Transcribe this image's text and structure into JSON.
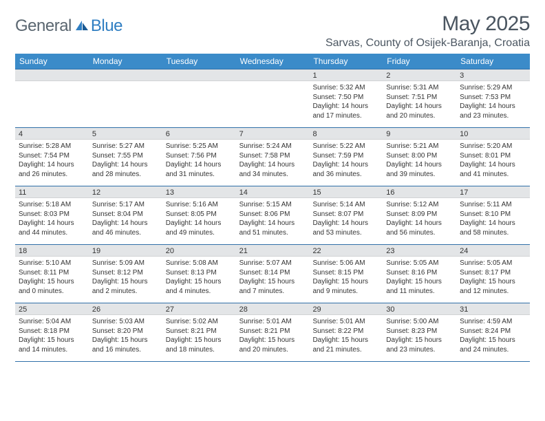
{
  "logo": {
    "general": "General",
    "blue": "Blue"
  },
  "title": "May 2025",
  "location": "Sarvas, County of Osijek-Baranja, Croatia",
  "colors": {
    "header_bg": "#3b8bc9",
    "week_border": "#2f6fa8",
    "daynum_bg": "#e3e5e7",
    "text": "#333333",
    "logo_gray": "#5a6670",
    "logo_blue": "#2f7ec2"
  },
  "day_headers": [
    "Sunday",
    "Monday",
    "Tuesday",
    "Wednesday",
    "Thursday",
    "Friday",
    "Saturday"
  ],
  "weeks": [
    [
      {
        "n": "",
        "sr": "",
        "ss": "",
        "dl": ""
      },
      {
        "n": "",
        "sr": "",
        "ss": "",
        "dl": ""
      },
      {
        "n": "",
        "sr": "",
        "ss": "",
        "dl": ""
      },
      {
        "n": "",
        "sr": "",
        "ss": "",
        "dl": ""
      },
      {
        "n": "1",
        "sr": "Sunrise: 5:32 AM",
        "ss": "Sunset: 7:50 PM",
        "dl": "Daylight: 14 hours and 17 minutes."
      },
      {
        "n": "2",
        "sr": "Sunrise: 5:31 AM",
        "ss": "Sunset: 7:51 PM",
        "dl": "Daylight: 14 hours and 20 minutes."
      },
      {
        "n": "3",
        "sr": "Sunrise: 5:29 AM",
        "ss": "Sunset: 7:53 PM",
        "dl": "Daylight: 14 hours and 23 minutes."
      }
    ],
    [
      {
        "n": "4",
        "sr": "Sunrise: 5:28 AM",
        "ss": "Sunset: 7:54 PM",
        "dl": "Daylight: 14 hours and 26 minutes."
      },
      {
        "n": "5",
        "sr": "Sunrise: 5:27 AM",
        "ss": "Sunset: 7:55 PM",
        "dl": "Daylight: 14 hours and 28 minutes."
      },
      {
        "n": "6",
        "sr": "Sunrise: 5:25 AM",
        "ss": "Sunset: 7:56 PM",
        "dl": "Daylight: 14 hours and 31 minutes."
      },
      {
        "n": "7",
        "sr": "Sunrise: 5:24 AM",
        "ss": "Sunset: 7:58 PM",
        "dl": "Daylight: 14 hours and 34 minutes."
      },
      {
        "n": "8",
        "sr": "Sunrise: 5:22 AM",
        "ss": "Sunset: 7:59 PM",
        "dl": "Daylight: 14 hours and 36 minutes."
      },
      {
        "n": "9",
        "sr": "Sunrise: 5:21 AM",
        "ss": "Sunset: 8:00 PM",
        "dl": "Daylight: 14 hours and 39 minutes."
      },
      {
        "n": "10",
        "sr": "Sunrise: 5:20 AM",
        "ss": "Sunset: 8:01 PM",
        "dl": "Daylight: 14 hours and 41 minutes."
      }
    ],
    [
      {
        "n": "11",
        "sr": "Sunrise: 5:18 AM",
        "ss": "Sunset: 8:03 PM",
        "dl": "Daylight: 14 hours and 44 minutes."
      },
      {
        "n": "12",
        "sr": "Sunrise: 5:17 AM",
        "ss": "Sunset: 8:04 PM",
        "dl": "Daylight: 14 hours and 46 minutes."
      },
      {
        "n": "13",
        "sr": "Sunrise: 5:16 AM",
        "ss": "Sunset: 8:05 PM",
        "dl": "Daylight: 14 hours and 49 minutes."
      },
      {
        "n": "14",
        "sr": "Sunrise: 5:15 AM",
        "ss": "Sunset: 8:06 PM",
        "dl": "Daylight: 14 hours and 51 minutes."
      },
      {
        "n": "15",
        "sr": "Sunrise: 5:14 AM",
        "ss": "Sunset: 8:07 PM",
        "dl": "Daylight: 14 hours and 53 minutes."
      },
      {
        "n": "16",
        "sr": "Sunrise: 5:12 AM",
        "ss": "Sunset: 8:09 PM",
        "dl": "Daylight: 14 hours and 56 minutes."
      },
      {
        "n": "17",
        "sr": "Sunrise: 5:11 AM",
        "ss": "Sunset: 8:10 PM",
        "dl": "Daylight: 14 hours and 58 minutes."
      }
    ],
    [
      {
        "n": "18",
        "sr": "Sunrise: 5:10 AM",
        "ss": "Sunset: 8:11 PM",
        "dl": "Daylight: 15 hours and 0 minutes."
      },
      {
        "n": "19",
        "sr": "Sunrise: 5:09 AM",
        "ss": "Sunset: 8:12 PM",
        "dl": "Daylight: 15 hours and 2 minutes."
      },
      {
        "n": "20",
        "sr": "Sunrise: 5:08 AM",
        "ss": "Sunset: 8:13 PM",
        "dl": "Daylight: 15 hours and 4 minutes."
      },
      {
        "n": "21",
        "sr": "Sunrise: 5:07 AM",
        "ss": "Sunset: 8:14 PM",
        "dl": "Daylight: 15 hours and 7 minutes."
      },
      {
        "n": "22",
        "sr": "Sunrise: 5:06 AM",
        "ss": "Sunset: 8:15 PM",
        "dl": "Daylight: 15 hours and 9 minutes."
      },
      {
        "n": "23",
        "sr": "Sunrise: 5:05 AM",
        "ss": "Sunset: 8:16 PM",
        "dl": "Daylight: 15 hours and 11 minutes."
      },
      {
        "n": "24",
        "sr": "Sunrise: 5:05 AM",
        "ss": "Sunset: 8:17 PM",
        "dl": "Daylight: 15 hours and 12 minutes."
      }
    ],
    [
      {
        "n": "25",
        "sr": "Sunrise: 5:04 AM",
        "ss": "Sunset: 8:18 PM",
        "dl": "Daylight: 15 hours and 14 minutes."
      },
      {
        "n": "26",
        "sr": "Sunrise: 5:03 AM",
        "ss": "Sunset: 8:20 PM",
        "dl": "Daylight: 15 hours and 16 minutes."
      },
      {
        "n": "27",
        "sr": "Sunrise: 5:02 AM",
        "ss": "Sunset: 8:21 PM",
        "dl": "Daylight: 15 hours and 18 minutes."
      },
      {
        "n": "28",
        "sr": "Sunrise: 5:01 AM",
        "ss": "Sunset: 8:21 PM",
        "dl": "Daylight: 15 hours and 20 minutes."
      },
      {
        "n": "29",
        "sr": "Sunrise: 5:01 AM",
        "ss": "Sunset: 8:22 PM",
        "dl": "Daylight: 15 hours and 21 minutes."
      },
      {
        "n": "30",
        "sr": "Sunrise: 5:00 AM",
        "ss": "Sunset: 8:23 PM",
        "dl": "Daylight: 15 hours and 23 minutes."
      },
      {
        "n": "31",
        "sr": "Sunrise: 4:59 AM",
        "ss": "Sunset: 8:24 PM",
        "dl": "Daylight: 15 hours and 24 minutes."
      }
    ]
  ]
}
